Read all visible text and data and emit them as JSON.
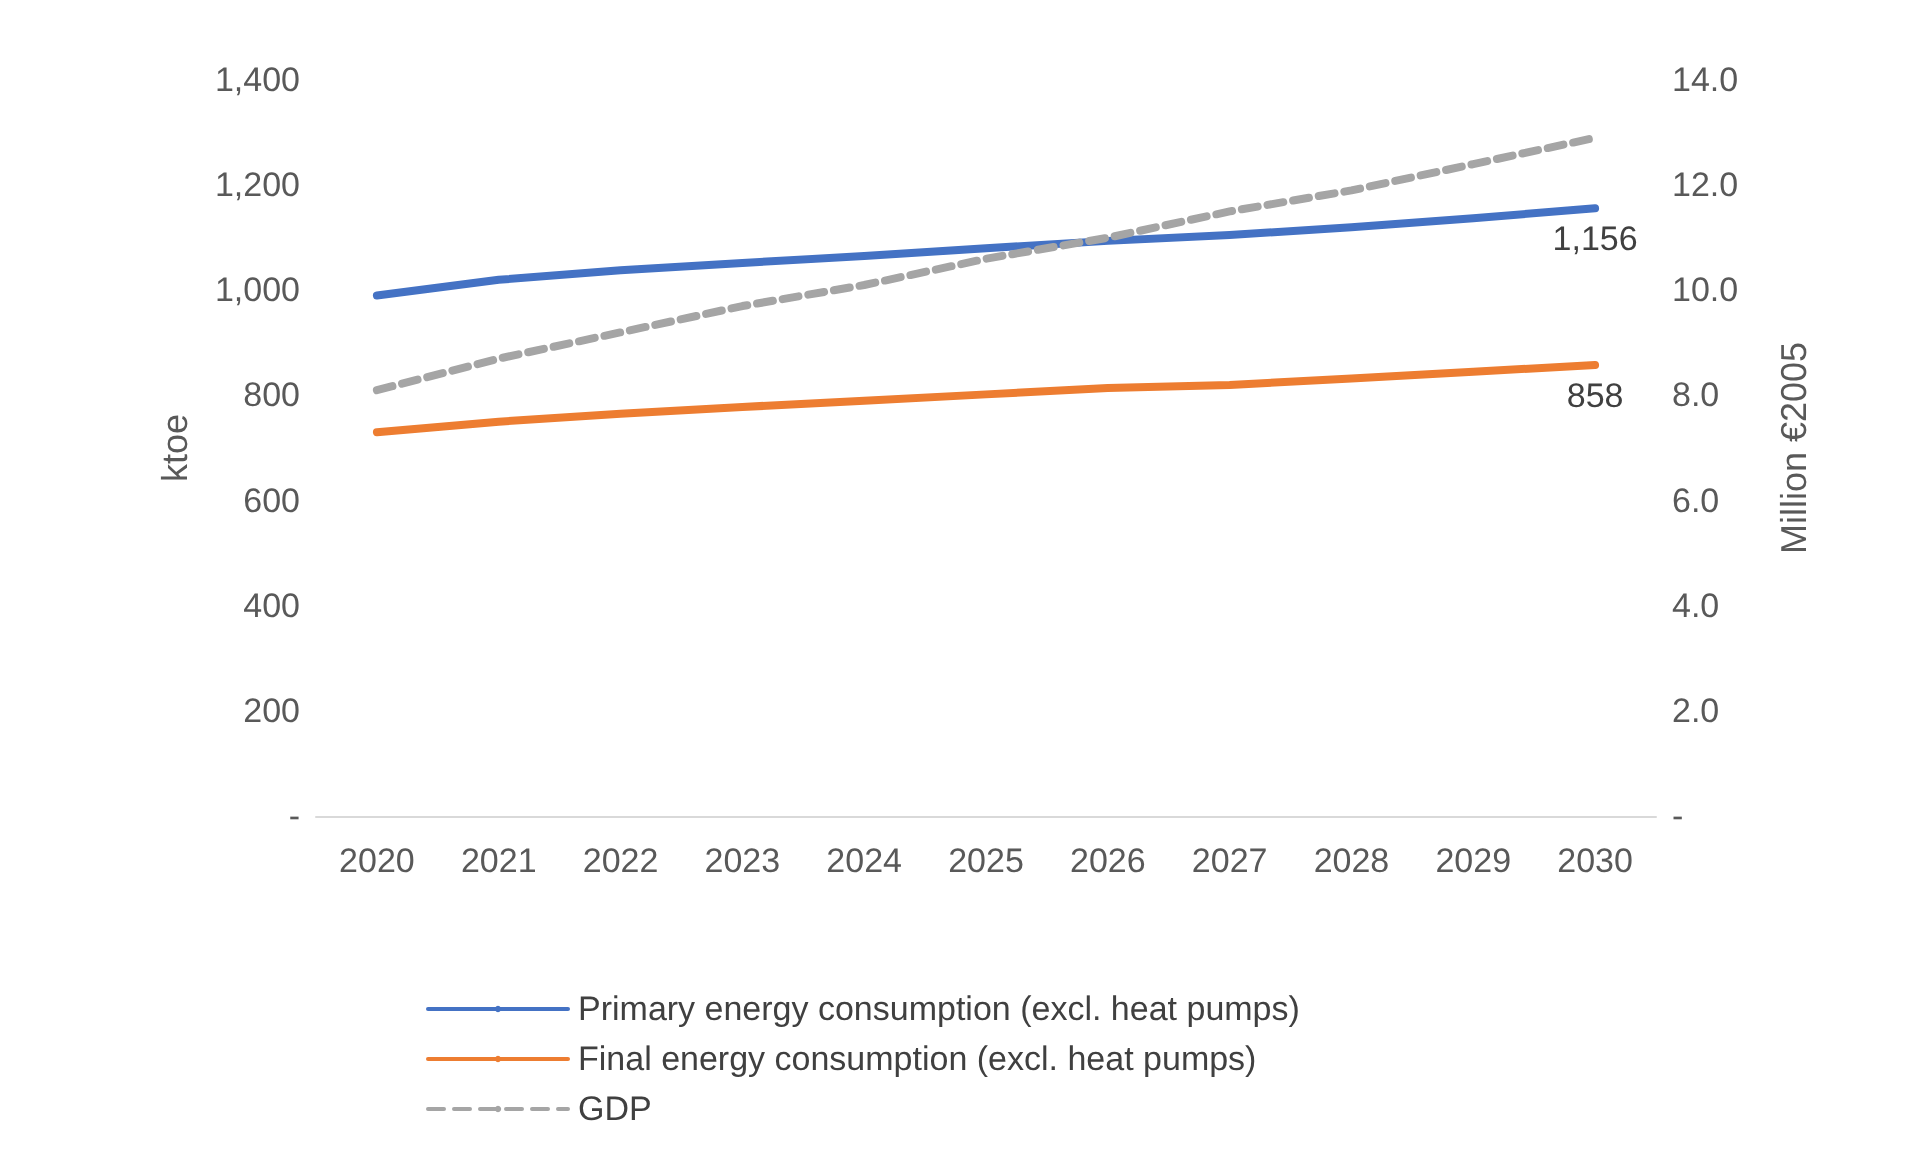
{
  "chart_data": {
    "type": "line",
    "ylabel": "ktoe",
    "y2label": "Million €2005",
    "categories": [
      "2020",
      "2021",
      "2022",
      "2023",
      "2024",
      "2025",
      "2026",
      "2027",
      "2028",
      "2029",
      "2030"
    ],
    "series": [
      {
        "name": "Primary energy consumption (excl. heat pumps)",
        "color": "#4472c4",
        "line_style": "solid",
        "values": [
          990,
          1020,
          1038,
          1052,
          1065,
          1080,
          1094,
          1105,
          1120,
          1137,
          1156
        ],
        "value_labels": [
          null,
          null,
          null,
          null,
          null,
          null,
          null,
          null,
          null,
          null,
          "1,156"
        ]
      },
      {
        "name": "Final energy consumption (excl. heat pumps)",
        "color": "#ed7d31",
        "line_style": "solid",
        "values": [
          730,
          750,
          765,
          778,
          790,
          802,
          814,
          820,
          832,
          845,
          858
        ],
        "value_labels": [
          null,
          null,
          null,
          null,
          null,
          null,
          null,
          null,
          null,
          null,
          "858"
        ]
      },
      {
        "name": "GDP",
        "color": "#a5a5a5",
        "line_style": "dashed",
        "axis": "y2",
        "values": [
          8.1,
          8.7,
          9.2,
          9.7,
          10.1,
          10.6,
          11.0,
          11.5,
          11.9,
          12.4,
          12.9
        ]
      }
    ],
    "ylim": [
      0,
      1400
    ],
    "yticks": [
      {
        "value": 0,
        "label": "-"
      },
      {
        "value": 200,
        "label": "200"
      },
      {
        "value": 400,
        "label": "400"
      },
      {
        "value": 600,
        "label": "600"
      },
      {
        "value": 800,
        "label": "800"
      },
      {
        "value": 1000,
        "label": "1,000"
      },
      {
        "value": 1200,
        "label": "1,200"
      },
      {
        "value": 1400,
        "label": "1,400"
      }
    ],
    "y2lim": [
      0,
      14
    ],
    "y2ticks": [
      {
        "value": 0,
        "label": "-"
      },
      {
        "value": 2,
        "label": "2.0"
      },
      {
        "value": 4,
        "label": "4.0"
      },
      {
        "value": 6,
        "label": "6.0"
      },
      {
        "value": 8,
        "label": "8.0"
      },
      {
        "value": 10,
        "label": "10.0"
      },
      {
        "value": 12,
        "label": "12.0"
      },
      {
        "value": 14,
        "label": "14.0"
      }
    ],
    "grid": false,
    "legend": "bottom",
    "marker": "none"
  }
}
